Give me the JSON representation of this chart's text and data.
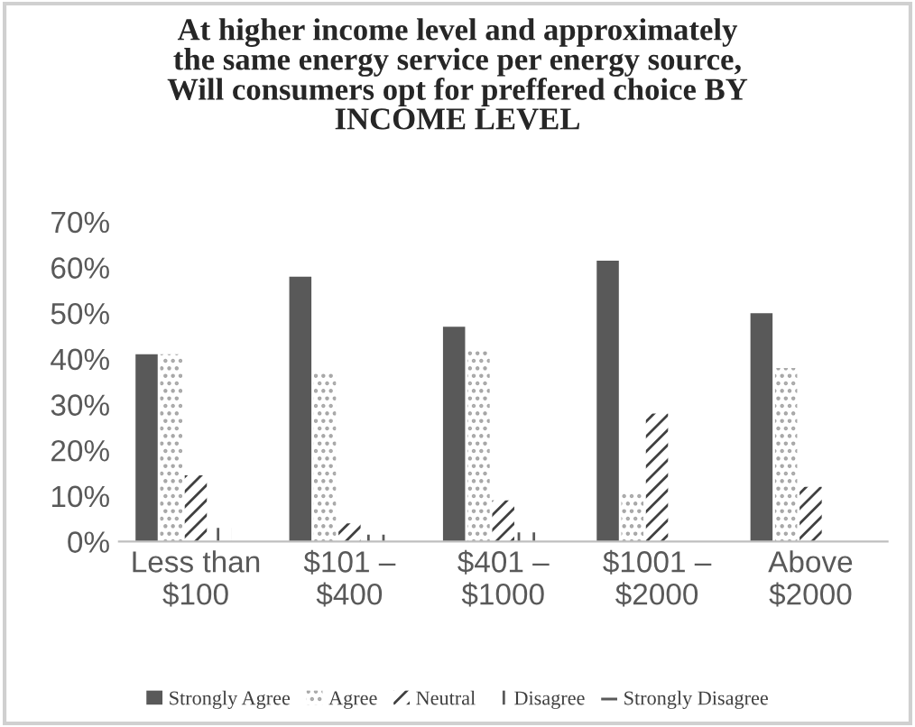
{
  "chart_data": {
    "type": "bar",
    "title": "At higher income level and approximately\nthe same energy service per energy source,\nWill consumers opt for preffered choice BY\nINCOME LEVEL",
    "categories": [
      "Less than\n$100",
      "$101 –\n$400",
      "$401 –\n$1000",
      "$1001 –\n$2000",
      "Above\n$2000"
    ],
    "series": [
      {
        "name": "Strongly Agree",
        "color": "#595959",
        "values": [
          41,
          58,
          47,
          61.5,
          50
        ]
      },
      {
        "name": "Agree",
        "color": "#a6a6a6",
        "values": [
          41,
          37,
          42,
          11,
          38
        ]
      },
      {
        "name": "Neutral",
        "color": "#404040",
        "values": [
          14.5,
          4,
          9,
          28,
          12
        ]
      },
      {
        "name": "Disagree",
        "color": "#595959",
        "values": [
          3,
          1.5,
          2,
          0,
          0
        ]
      },
      {
        "name": "Strongly Disagree",
        "color": "#595959",
        "values": [
          0,
          0,
          0,
          0,
          0
        ]
      }
    ],
    "ylim": [
      0,
      70
    ],
    "yticks": [
      {
        "value": 0,
        "label": "0%"
      },
      {
        "value": 10,
        "label": "10%"
      },
      {
        "value": 20,
        "label": "20%"
      },
      {
        "value": 30,
        "label": "30%"
      },
      {
        "value": 40,
        "label": "40%"
      },
      {
        "value": 50,
        "label": "50%"
      },
      {
        "value": 60,
        "label": "60%"
      },
      {
        "value": 70,
        "label": "70%"
      }
    ],
    "grid": false,
    "legend": "bottom"
  }
}
